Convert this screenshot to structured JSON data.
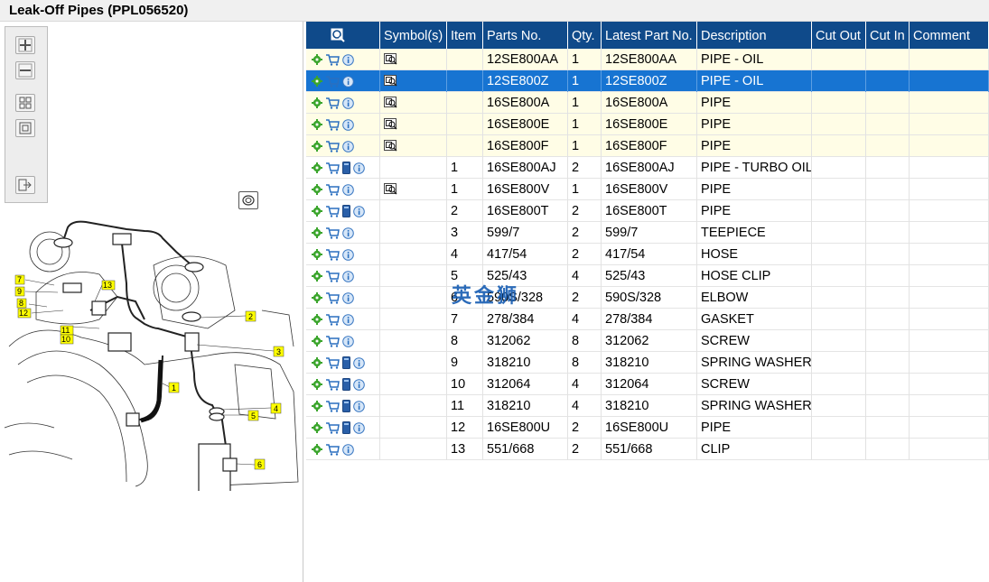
{
  "window": {
    "title": "Leak-Off Pipes (PPL056520)"
  },
  "toolbar": {
    "buttons": [
      "zoom-in-icon",
      "zoom-out-icon",
      "fit-page-icon",
      "actual-size-icon",
      "export-icon"
    ]
  },
  "diagram": {
    "callouts": [
      "1",
      "2",
      "3",
      "4",
      "5",
      "6",
      "7",
      "8",
      "9",
      "10",
      "11",
      "12",
      "13"
    ]
  },
  "grid": {
    "columns": [
      "",
      "Symbol(s)",
      "Item",
      "Parts No.",
      "Qty.",
      "Latest Part No.",
      "Description",
      "Cut Out",
      "Cut In",
      "Comment"
    ],
    "rows": [
      {
        "symbol": "magnifier",
        "item": "",
        "part": "12SE800AA",
        "qty": "1",
        "latest": "12SE800AA",
        "desc": "PIPE - OIL",
        "book": false,
        "style": "yellow"
      },
      {
        "symbol": "magnifier",
        "item": "",
        "part": "12SE800Z",
        "qty": "1",
        "latest": "12SE800Z",
        "desc": "PIPE - OIL",
        "book": false,
        "style": "selected"
      },
      {
        "symbol": "magnifier",
        "item": "",
        "part": "16SE800A",
        "qty": "1",
        "latest": "16SE800A",
        "desc": "PIPE",
        "book": false,
        "style": "yellow"
      },
      {
        "symbol": "magnifier",
        "item": "",
        "part": "16SE800E",
        "qty": "1",
        "latest": "16SE800E",
        "desc": "PIPE",
        "book": false,
        "style": "yellow"
      },
      {
        "symbol": "magnifier",
        "item": "",
        "part": "16SE800F",
        "qty": "1",
        "latest": "16SE800F",
        "desc": "PIPE",
        "book": false,
        "style": "yellow"
      },
      {
        "symbol": "",
        "item": "1",
        "part": "16SE800AJ",
        "qty": "2",
        "latest": "16SE800AJ",
        "desc": "PIPE - TURBO OIL I",
        "book": true,
        "style": ""
      },
      {
        "symbol": "magnifier",
        "item": "1",
        "part": "16SE800V",
        "qty": "1",
        "latest": "16SE800V",
        "desc": "PIPE",
        "book": false,
        "style": ""
      },
      {
        "symbol": "",
        "item": "2",
        "part": "16SE800T",
        "qty": "2",
        "latest": "16SE800T",
        "desc": "PIPE",
        "book": true,
        "style": ""
      },
      {
        "symbol": "",
        "item": "3",
        "part": "599/7",
        "qty": "2",
        "latest": "599/7",
        "desc": "TEEPIECE",
        "book": false,
        "style": ""
      },
      {
        "symbol": "",
        "item": "4",
        "part": "417/54",
        "qty": "2",
        "latest": "417/54",
        "desc": "HOSE",
        "book": false,
        "style": ""
      },
      {
        "symbol": "",
        "item": "5",
        "part": "525/43",
        "qty": "4",
        "latest": "525/43",
        "desc": "HOSE CLIP",
        "book": false,
        "style": ""
      },
      {
        "symbol": "",
        "item": "6",
        "part": "590S/328",
        "qty": "2",
        "latest": "590S/328",
        "desc": "ELBOW",
        "book": false,
        "style": ""
      },
      {
        "symbol": "",
        "item": "7",
        "part": "278/384",
        "qty": "4",
        "latest": "278/384",
        "desc": "GASKET",
        "book": false,
        "style": ""
      },
      {
        "symbol": "",
        "item": "8",
        "part": "312062",
        "qty": "8",
        "latest": "312062",
        "desc": "SCREW",
        "book": false,
        "style": ""
      },
      {
        "symbol": "",
        "item": "9",
        "part": "318210",
        "qty": "8",
        "latest": "318210",
        "desc": "SPRING WASHER",
        "book": true,
        "style": ""
      },
      {
        "symbol": "",
        "item": "10",
        "part": "312064",
        "qty": "4",
        "latest": "312064",
        "desc": "SCREW",
        "book": true,
        "style": ""
      },
      {
        "symbol": "",
        "item": "11",
        "part": "318210",
        "qty": "4",
        "latest": "318210",
        "desc": "SPRING WASHER",
        "book": true,
        "style": ""
      },
      {
        "symbol": "",
        "item": "12",
        "part": "16SE800U",
        "qty": "2",
        "latest": "16SE800U",
        "desc": "PIPE",
        "book": true,
        "style": ""
      },
      {
        "symbol": "",
        "item": "13",
        "part": "551/668",
        "qty": "2",
        "latest": "551/668",
        "desc": "CLIP",
        "book": false,
        "style": ""
      }
    ]
  },
  "watermark": "英金狮",
  "colors": {
    "header": "#0f4a8a",
    "selected": "#1774d2",
    "yellow_row": "#fffde6",
    "callout": "#ffff00",
    "gear": "#3ba52c",
    "cart": "#2a6fbf"
  }
}
